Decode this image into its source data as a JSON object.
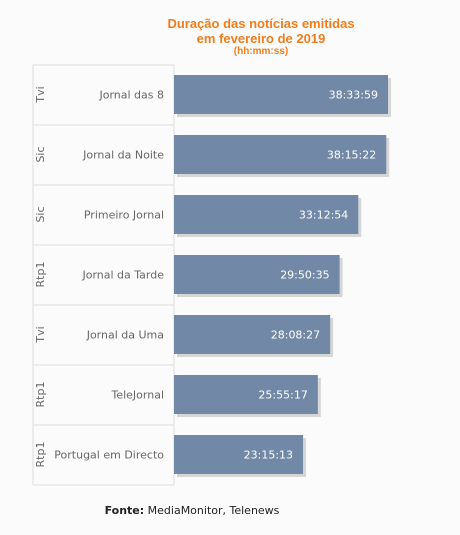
{
  "title": {
    "line1": "Duração das notícias emitidas",
    "line2": "em fevereiro de 2019",
    "subtitle": "(hh:mm:ss)"
  },
  "chart_data": {
    "type": "bar",
    "orientation": "horizontal",
    "categories": [
      "Jornal das 8",
      "Jornal da Noite",
      "Primeiro Jornal",
      "Jornal da Tarde",
      "Jornal da Uma",
      "TeleJornal",
      "Portugal em Directo"
    ],
    "groups": [
      "Tvi",
      "Sic",
      "Sic",
      "Rtp1",
      "Tvi",
      "Rtp1",
      "Rtp1"
    ],
    "value_labels": [
      "38:33:59",
      "38:15:22",
      "33:12:54",
      "29:50:35",
      "28:08:27",
      "25:55:17",
      "23:15:13"
    ],
    "values_seconds": [
      138839,
      137722,
      119574,
      107435,
      101307,
      93317,
      83713
    ],
    "bar_color": "#7189a6",
    "grid": true,
    "legend": "none"
  },
  "source": {
    "label": "Fonte:",
    "text": "MediaMonitor, Telenews"
  }
}
